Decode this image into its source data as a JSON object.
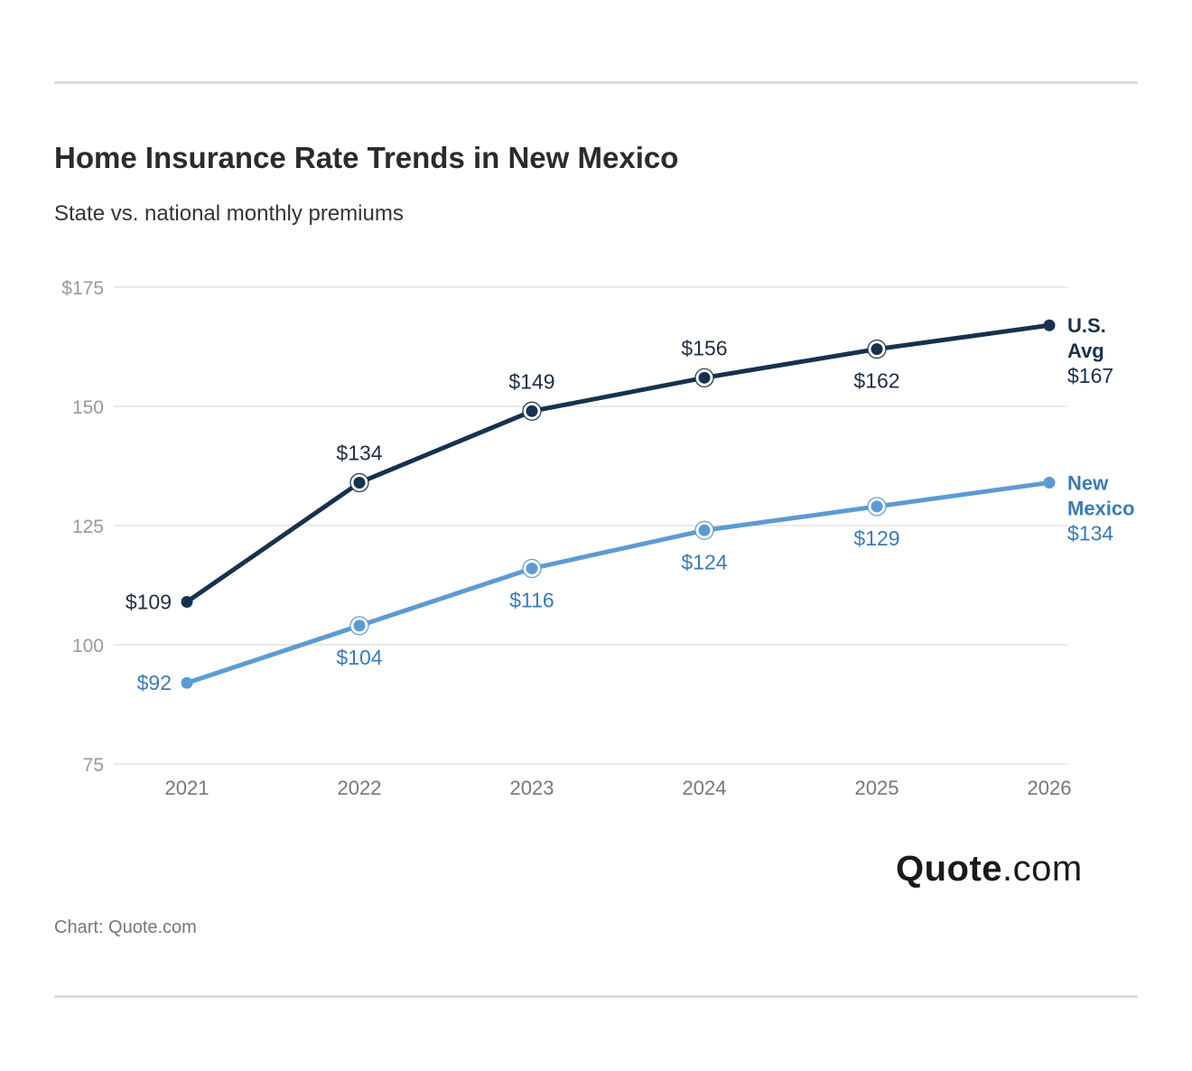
{
  "chart_data": {
    "type": "line",
    "title": "Home Insurance Rate Trends in New Mexico",
    "subtitle": "State vs. national monthly premiums",
    "x": [
      "2021",
      "2022",
      "2023",
      "2024",
      "2025",
      "2026"
    ],
    "ylim": [
      75,
      175
    ],
    "yticks": [
      {
        "value": 75,
        "label": "75"
      },
      {
        "value": 100,
        "label": "100"
      },
      {
        "value": 125,
        "label": "125"
      },
      {
        "value": 150,
        "label": "150"
      },
      {
        "value": 175,
        "label": "$175"
      }
    ],
    "grid": true,
    "series": [
      {
        "name": "U.S. Avg",
        "name_lines": [
          "U.S.",
          "Avg"
        ],
        "color": "#16324f",
        "values": [
          109,
          134,
          149,
          156,
          162,
          167
        ],
        "labels": [
          "$109",
          "$134",
          "$149",
          "$156",
          "$162",
          "$167"
        ]
      },
      {
        "name": "New Mexico",
        "name_lines": [
          "New",
          "Mexico"
        ],
        "color": "#5b9bd5",
        "label_color": "#3a7bb5",
        "values": [
          92,
          104,
          116,
          124,
          129,
          134
        ],
        "labels": [
          "$92",
          "$104",
          "$116",
          "$124",
          "$129",
          "$134"
        ]
      }
    ]
  },
  "brand": {
    "strong": "Quote",
    "light": ".com"
  },
  "source": "Chart: Quote.com"
}
